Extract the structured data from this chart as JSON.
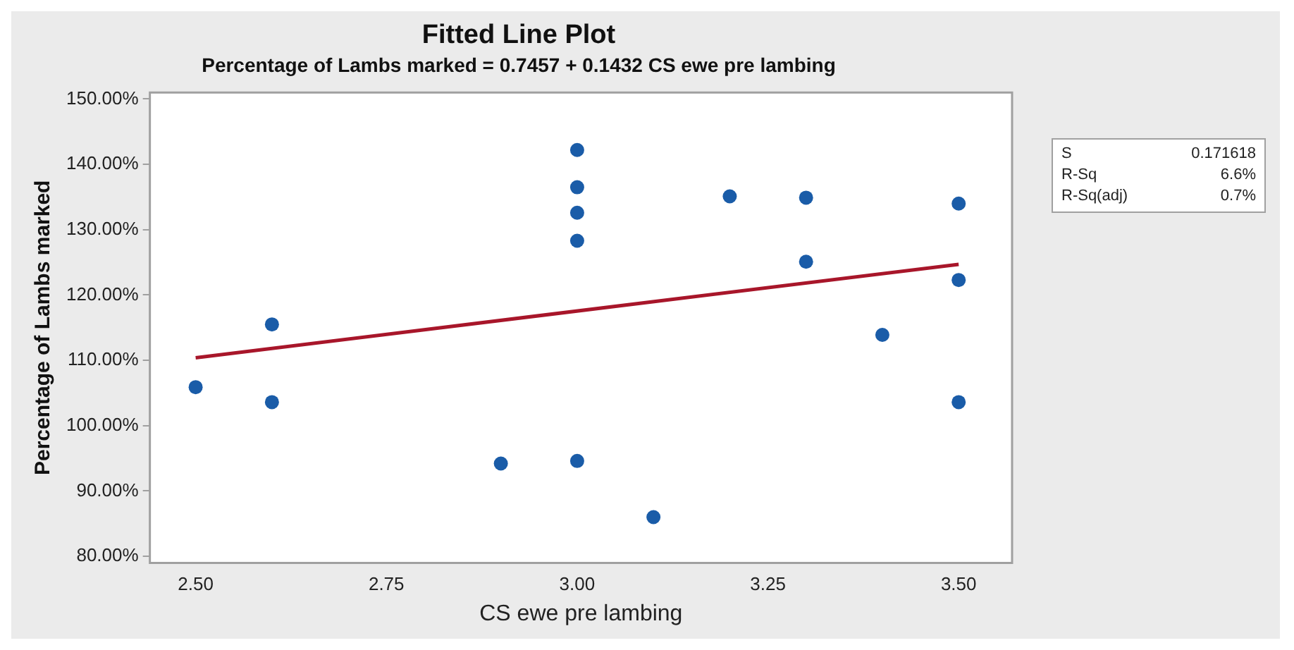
{
  "chart_data": {
    "type": "scatter",
    "title": "Fitted Line Plot",
    "subtitle": "Percentage of Lambs marked = 0.7457 + 0.1432 CS ewe pre lambing",
    "xlabel": "CS ewe pre lambing",
    "ylabel": "Percentage of Lambs marked",
    "xlim": [
      2.44,
      3.57
    ],
    "ylim": [
      79,
      151
    ],
    "xticks": [
      {
        "value": 2.5,
        "label": "2.50"
      },
      {
        "value": 2.75,
        "label": "2.75"
      },
      {
        "value": 3.0,
        "label": "3.00"
      },
      {
        "value": 3.25,
        "label": "3.25"
      },
      {
        "value": 3.5,
        "label": "3.50"
      }
    ],
    "yticks": [
      {
        "value": 80,
        "label": "80.00%"
      },
      {
        "value": 90,
        "label": "90.00%"
      },
      {
        "value": 100,
        "label": "100.00%"
      },
      {
        "value": 110,
        "label": "110.00%"
      },
      {
        "value": 120,
        "label": "120.00%"
      },
      {
        "value": 130,
        "label": "130.00%"
      },
      {
        "value": 140,
        "label": "140.00%"
      },
      {
        "value": 150,
        "label": "150.00%"
      }
    ],
    "grid": false,
    "legend": false,
    "marker": "circle",
    "series": [
      {
        "type": "scatter",
        "color": "#1a5ca8",
        "x": [
          2.5,
          2.6,
          2.6,
          2.9,
          3.0,
          3.0,
          3.0,
          3.0,
          3.0,
          3.1,
          3.2,
          3.3,
          3.3,
          3.4,
          3.5,
          3.5,
          3.5
        ],
        "values": [
          105.9,
          115.5,
          103.6,
          94.2,
          142.2,
          136.5,
          132.6,
          128.3,
          94.6,
          86.0,
          135.1,
          134.9,
          125.1,
          113.9,
          134.0,
          122.3,
          103.6
        ]
      },
      {
        "type": "line",
        "color": "#a8162a",
        "marker": "none",
        "line_style": "solid",
        "x": [
          2.5,
          3.5
        ],
        "values": [
          110.4,
          124.7
        ]
      }
    ],
    "annotations": [
      "S",
      "0.171618",
      "R-Sq",
      "6.6%",
      "R-Sq(adj)",
      "0.7%"
    ]
  }
}
